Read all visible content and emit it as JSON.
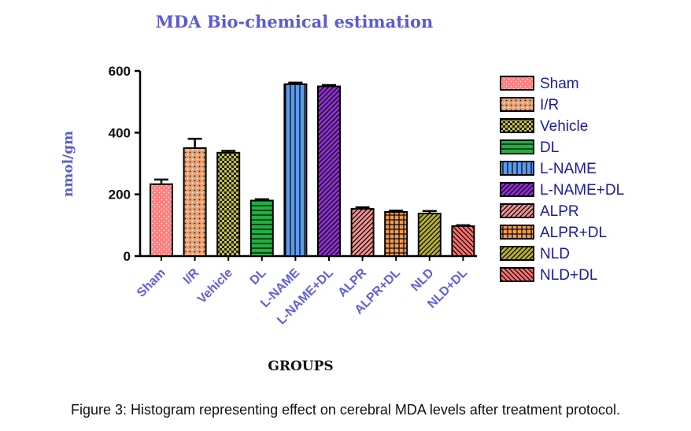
{
  "chart_data": {
    "type": "bar",
    "title": "MDA Bio-chemical estimation",
    "xlabel": "GROUPS",
    "ylabel": "nmol/gm",
    "ylim": [
      0,
      600
    ],
    "yticks": [
      0,
      200,
      400,
      600
    ],
    "categories": [
      "Sham",
      "I/R",
      "Vehicle",
      "DL",
      "L-NAME",
      "L-NAME+DL",
      "ALPR",
      "ALPR+DL",
      "NLD",
      "NLD+DL"
    ],
    "values": [
      233,
      350,
      335,
      180,
      557,
      550,
      153,
      143,
      138,
      97
    ],
    "errors": [
      15,
      30,
      6,
      4,
      5,
      4,
      5,
      4,
      8,
      3
    ],
    "series_styles": [
      {
        "name": "Sham",
        "color": "#ff8080",
        "pattern": "dots"
      },
      {
        "name": "I/R",
        "color": "#e8a070",
        "pattern": "crosshatch"
      },
      {
        "name": "Vehicle",
        "color": "#c8c040",
        "pattern": "checker"
      },
      {
        "name": "DL",
        "color": "#20b040",
        "pattern": "hlines"
      },
      {
        "name": "L-NAME",
        "color": "#5a9af0",
        "pattern": "vlines"
      },
      {
        "name": "L-NAME+DL",
        "color": "#9030d0",
        "pattern": "diag"
      },
      {
        "name": "ALPR",
        "color": "#f09090",
        "pattern": "diag"
      },
      {
        "name": "ALPR+DL",
        "color": "#f09a50",
        "pattern": "grid"
      },
      {
        "name": "NLD",
        "color": "#b8b030",
        "pattern": "diag"
      },
      {
        "name": "NLD+DL",
        "color": "#ff7070",
        "pattern": "antidiag"
      }
    ],
    "legend_position": "right"
  },
  "caption": "Figure 3: Histogram representing effect on cerebral MDA levels after treatment protocol."
}
